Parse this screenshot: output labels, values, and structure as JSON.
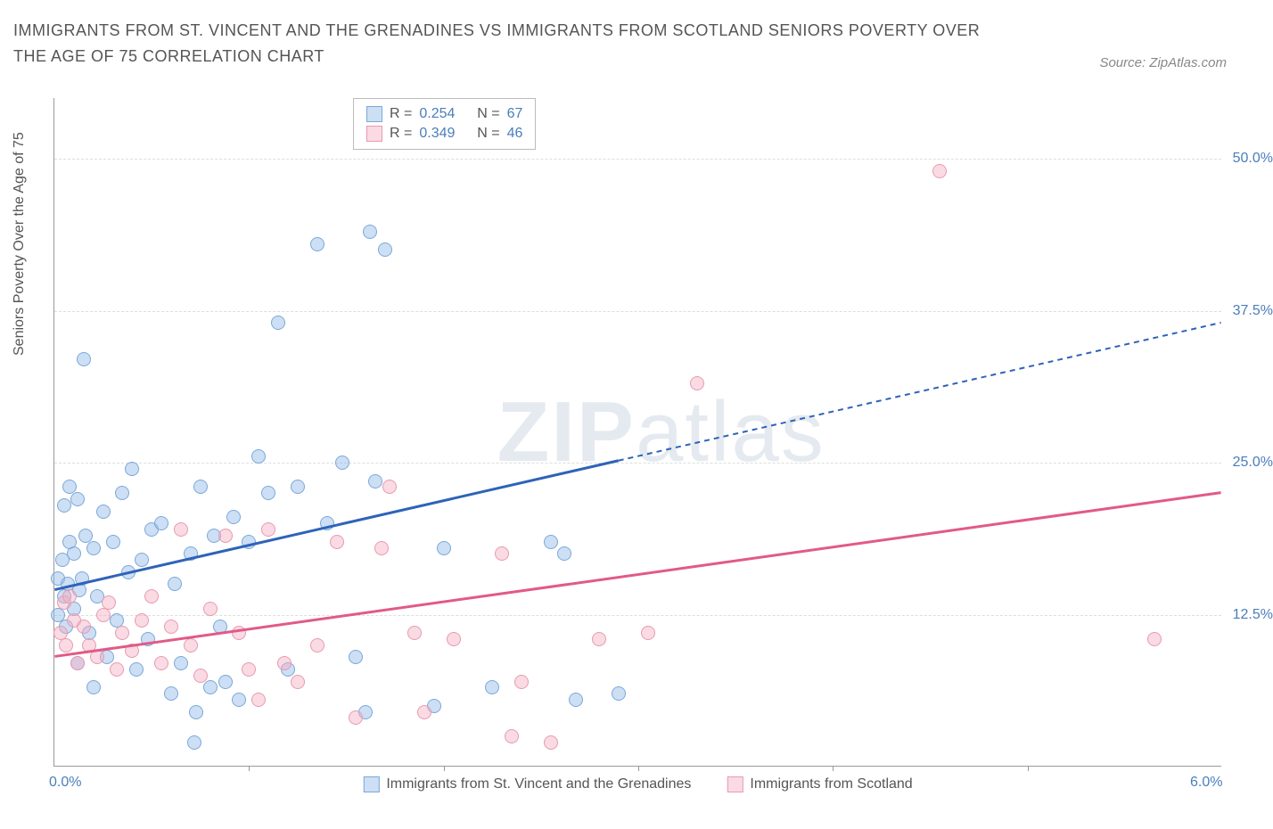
{
  "title": "IMMIGRANTS FROM ST. VINCENT AND THE GRENADINES VS IMMIGRANTS FROM SCOTLAND SENIORS POVERTY OVER THE AGE OF 75 CORRELATION CHART",
  "source": "Source: ZipAtlas.com",
  "y_axis_label": "Seniors Poverty Over the Age of 75",
  "watermark": {
    "part1": "ZIP",
    "part2": "atlas"
  },
  "chart": {
    "type": "scatter",
    "xlim": [
      0.0,
      6.0
    ],
    "ylim": [
      0.0,
      55.0
    ],
    "x_ticks": [
      {
        "value": 0.0,
        "label": "0.0%"
      },
      {
        "value": 1.0,
        "label": ""
      },
      {
        "value": 2.0,
        "label": ""
      },
      {
        "value": 3.0,
        "label": ""
      },
      {
        "value": 4.0,
        "label": ""
      },
      {
        "value": 5.0,
        "label": ""
      },
      {
        "value": 6.0,
        "label": "6.0%"
      }
    ],
    "y_grid": [
      {
        "value": 12.5,
        "label": "12.5%"
      },
      {
        "value": 25.0,
        "label": "25.0%"
      },
      {
        "value": 37.5,
        "label": "37.5%"
      },
      {
        "value": 50.0,
        "label": "50.0%"
      }
    ],
    "background_color": "#ffffff",
    "grid_color": "#dddddd",
    "axis_color": "#999999",
    "tick_label_color": "#4a7ebb"
  },
  "series": [
    {
      "name": "Immigrants from St. Vincent and the Grenadines",
      "fill_color": "rgba(144,185,232,0.45)",
      "stroke_color": "#7aa8d8",
      "trend_color": "#2e63b8",
      "stats": {
        "R": "0.254",
        "N": "67"
      },
      "trend": {
        "x1": 0.0,
        "y1": 14.5,
        "x2": 6.0,
        "y2": 36.5,
        "solid_until_x": 2.9
      },
      "points": [
        [
          0.02,
          15.5
        ],
        [
          0.02,
          12.5
        ],
        [
          0.04,
          17.0
        ],
        [
          0.05,
          14.0
        ],
        [
          0.05,
          21.5
        ],
        [
          0.06,
          11.5
        ],
        [
          0.07,
          15.0
        ],
        [
          0.08,
          23.0
        ],
        [
          0.08,
          18.5
        ],
        [
          0.1,
          13.0
        ],
        [
          0.1,
          17.5
        ],
        [
          0.12,
          22.0
        ],
        [
          0.12,
          8.5
        ],
        [
          0.13,
          14.5
        ],
        [
          0.14,
          15.5
        ],
        [
          0.15,
          33.5
        ],
        [
          0.16,
          19.0
        ],
        [
          0.18,
          11.0
        ],
        [
          0.2,
          18.0
        ],
        [
          0.2,
          6.5
        ],
        [
          0.22,
          14.0
        ],
        [
          0.25,
          21.0
        ],
        [
          0.27,
          9.0
        ],
        [
          0.3,
          18.5
        ],
        [
          0.32,
          12.0
        ],
        [
          0.35,
          22.5
        ],
        [
          0.38,
          16.0
        ],
        [
          0.4,
          24.5
        ],
        [
          0.42,
          8.0
        ],
        [
          0.45,
          17.0
        ],
        [
          0.48,
          10.5
        ],
        [
          0.5,
          19.5
        ],
        [
          0.55,
          20.0
        ],
        [
          0.6,
          6.0
        ],
        [
          0.62,
          15.0
        ],
        [
          0.65,
          8.5
        ],
        [
          0.7,
          17.5
        ],
        [
          0.72,
          2.0
        ],
        [
          0.73,
          4.5
        ],
        [
          0.75,
          23.0
        ],
        [
          0.8,
          6.5
        ],
        [
          0.82,
          19.0
        ],
        [
          0.85,
          11.5
        ],
        [
          0.88,
          7.0
        ],
        [
          0.92,
          20.5
        ],
        [
          0.95,
          5.5
        ],
        [
          1.0,
          18.5
        ],
        [
          1.05,
          25.5
        ],
        [
          1.1,
          22.5
        ],
        [
          1.15,
          36.5
        ],
        [
          1.2,
          8.0
        ],
        [
          1.25,
          23.0
        ],
        [
          1.35,
          43.0
        ],
        [
          1.4,
          20.0
        ],
        [
          1.48,
          25.0
        ],
        [
          1.55,
          9.0
        ],
        [
          1.6,
          4.5
        ],
        [
          1.62,
          44.0
        ],
        [
          1.65,
          23.5
        ],
        [
          1.7,
          42.5
        ],
        [
          1.95,
          5.0
        ],
        [
          2.0,
          18.0
        ],
        [
          2.25,
          6.5
        ],
        [
          2.55,
          18.5
        ],
        [
          2.62,
          17.5
        ],
        [
          2.68,
          5.5
        ],
        [
          2.9,
          6.0
        ]
      ]
    },
    {
      "name": "Immigrants from Scotland",
      "fill_color": "rgba(244,172,193,0.45)",
      "stroke_color": "#e89ab0",
      "trend_color": "#e15a87",
      "stats": {
        "R": "0.349",
        "N": "46"
      },
      "trend": {
        "x1": 0.0,
        "y1": 9.0,
        "x2": 6.0,
        "y2": 22.5,
        "solid_until_x": 6.0
      },
      "points": [
        [
          0.03,
          11.0
        ],
        [
          0.05,
          13.5
        ],
        [
          0.06,
          10.0
        ],
        [
          0.08,
          14.0
        ],
        [
          0.1,
          12.0
        ],
        [
          0.12,
          8.5
        ],
        [
          0.15,
          11.5
        ],
        [
          0.18,
          10.0
        ],
        [
          0.22,
          9.0
        ],
        [
          0.25,
          12.5
        ],
        [
          0.28,
          13.5
        ],
        [
          0.32,
          8.0
        ],
        [
          0.35,
          11.0
        ],
        [
          0.4,
          9.5
        ],
        [
          0.45,
          12.0
        ],
        [
          0.5,
          14.0
        ],
        [
          0.55,
          8.5
        ],
        [
          0.6,
          11.5
        ],
        [
          0.65,
          19.5
        ],
        [
          0.7,
          10.0
        ],
        [
          0.75,
          7.5
        ],
        [
          0.8,
          13.0
        ],
        [
          0.88,
          19.0
        ],
        [
          0.95,
          11.0
        ],
        [
          1.0,
          8.0
        ],
        [
          1.05,
          5.5
        ],
        [
          1.1,
          19.5
        ],
        [
          1.18,
          8.5
        ],
        [
          1.25,
          7.0
        ],
        [
          1.35,
          10.0
        ],
        [
          1.45,
          18.5
        ],
        [
          1.55,
          4.0
        ],
        [
          1.68,
          18.0
        ],
        [
          1.72,
          23.0
        ],
        [
          1.85,
          11.0
        ],
        [
          1.9,
          4.5
        ],
        [
          2.05,
          10.5
        ],
        [
          2.3,
          17.5
        ],
        [
          2.35,
          2.5
        ],
        [
          2.4,
          7.0
        ],
        [
          2.55,
          2.0
        ],
        [
          2.8,
          10.5
        ],
        [
          3.05,
          11.0
        ],
        [
          3.3,
          31.5
        ],
        [
          4.55,
          49.0
        ],
        [
          5.65,
          10.5
        ]
      ]
    }
  ],
  "stats_labels": {
    "R": "R =",
    "N": "N ="
  },
  "legend_series_order": [
    0,
    1
  ]
}
